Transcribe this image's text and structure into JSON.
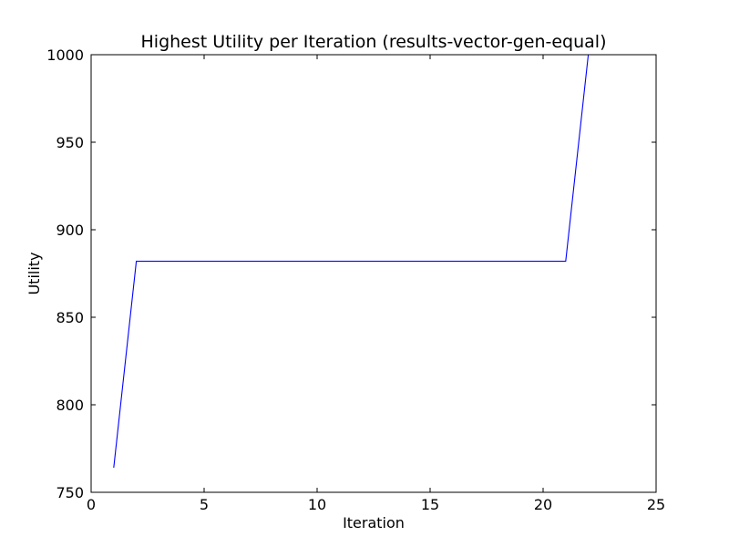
{
  "chart_data": {
    "type": "line",
    "title": "Highest Utility per Iteration (results-vector-gen-equal)",
    "xlabel": "Iteration",
    "ylabel": "Utility",
    "xlim": [
      0,
      25
    ],
    "ylim": [
      750,
      1000
    ],
    "xticks": [
      0,
      5,
      10,
      15,
      20,
      25
    ],
    "yticks": [
      750,
      800,
      850,
      900,
      950,
      1000
    ],
    "grid": false,
    "series": [
      {
        "color": "#0000ff",
        "x": [
          1,
          2,
          3,
          4,
          5,
          6,
          7,
          8,
          9,
          10,
          11,
          12,
          13,
          14,
          15,
          16,
          17,
          18,
          19,
          20,
          21,
          22,
          23,
          24,
          25
        ],
        "y": [
          764,
          882,
          882,
          882,
          882,
          882,
          882,
          882,
          882,
          882,
          882,
          882,
          882,
          882,
          882,
          882,
          882,
          882,
          882,
          882,
          882,
          1000,
          1000,
          1000,
          1000
        ]
      }
    ]
  }
}
